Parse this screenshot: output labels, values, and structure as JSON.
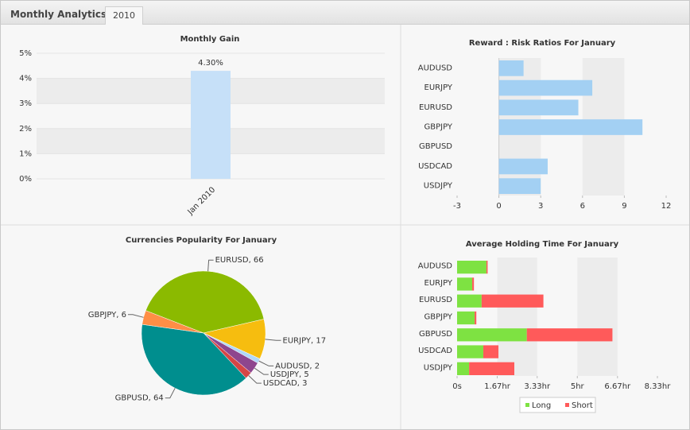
{
  "header": {
    "title": "Monthly Analytics",
    "tabs": [
      "2010"
    ]
  },
  "chart_data": [
    {
      "type": "bar",
      "title": "Monthly Gain",
      "categories": [
        "Jan 2010"
      ],
      "values": [
        4.3
      ],
      "value_labels": [
        "4.30%"
      ],
      "color": "#c6e0f8",
      "ylim": [
        0,
        5
      ],
      "yticks": [
        {
          "value": 0,
          "label": "0%"
        },
        {
          "value": 1,
          "label": "1%"
        },
        {
          "value": 2,
          "label": "2%"
        },
        {
          "value": 3,
          "label": "3%"
        },
        {
          "value": 4,
          "label": "4%"
        },
        {
          "value": 5,
          "label": "5%"
        }
      ],
      "grid": true
    },
    {
      "type": "hbar",
      "title": "Reward : Risk Ratios For January",
      "categories": [
        "AUDUSD",
        "EURJPY",
        "EURUSD",
        "GBPJPY",
        "GBPUSD",
        "USDCAD",
        "USDJPY"
      ],
      "values": [
        1.77,
        6.7,
        5.7,
        10.3,
        0,
        3.5,
        3.0
      ],
      "color": "#a3d0f3",
      "xlim": [
        -3,
        12
      ],
      "xticks": [
        -3,
        0,
        3,
        6,
        9,
        12
      ],
      "grid": true
    },
    {
      "type": "pie",
      "title": "Currencies Popularity For January",
      "values": [
        66,
        17,
        2,
        5,
        3,
        64,
        6
      ],
      "value_labels": [
        "EURUSD, 66",
        "EURJPY, 17",
        "AUDUSD, 2",
        "USDJPY, 5",
        "USDCAD, 3",
        "GBPUSD, 64",
        "GBPJPY, 6"
      ],
      "colors": [
        "#8bba00",
        "#f6bd0f",
        "#afd8f8",
        "#8e468e",
        "#d64646",
        "#008e8e",
        "#ff8e46"
      ]
    },
    {
      "type": "stackedhbar",
      "title": "Average Holding Time For January",
      "categories": [
        "AUDUSD",
        "EURJPY",
        "EURUSD",
        "GBPJPY",
        "GBPUSD",
        "USDCAD",
        "USDJPY"
      ],
      "series": [
        {
          "name": "Long",
          "color": "#7ee242",
          "values": [
            1.22,
            0.63,
            1.02,
            0.73,
            2.9,
            1.09,
            0.5
          ]
        },
        {
          "name": "Short",
          "color": "#ff5a5a",
          "values": [
            0.05,
            0.07,
            2.57,
            0.07,
            3.56,
            0.63,
            1.88
          ]
        }
      ],
      "xlim": [
        0,
        8.33
      ],
      "xticks": [
        {
          "value": 0,
          "label": "0s"
        },
        {
          "value": 1.67,
          "label": "1.67hr"
        },
        {
          "value": 3.33,
          "label": "3.33hr"
        },
        {
          "value": 5,
          "label": "5hr"
        },
        {
          "value": 6.67,
          "label": "6.67hr"
        },
        {
          "value": 8.33,
          "label": "8.33hr"
        }
      ],
      "grid": true,
      "legend": "bottom"
    }
  ]
}
